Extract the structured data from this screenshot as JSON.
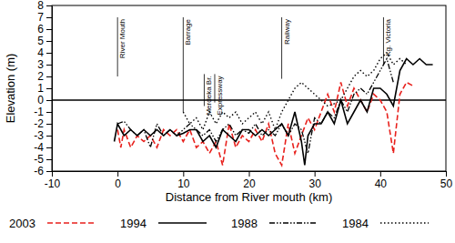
{
  "chart_data": {
    "type": "line",
    "x_label": "Distance from River mouth (km)",
    "y_label": "Elevation (m)",
    "xlim": [
      -10,
      50
    ],
    "xticks": [
      -10,
      0,
      10,
      20,
      30,
      40,
      50
    ],
    "ylim": [
      -6,
      8
    ],
    "yticks": [
      -6,
      -5,
      -4,
      -3,
      -2,
      -1,
      0,
      1,
      2,
      3,
      4,
      5,
      6,
      7,
      8
    ],
    "legend": "bottom",
    "reference_line": 0,
    "annotations": [
      {
        "text": "River Mouth",
        "x": 0,
        "y": [
          2,
          7
        ]
      },
      {
        "text": "Barrage",
        "x": 10,
        "y": [
          -1,
          7
        ]
      },
      {
        "text": "Merdeka Br.",
        "x": 13.2,
        "y": [
          -0.5,
          2.2
        ]
      },
      {
        "text": "Expressway",
        "x": 14.8,
        "y": [
          -0.2,
          2.2
        ]
      },
      {
        "text": "Railway",
        "x": 25,
        "y": [
          1.8,
          7
        ]
      },
      {
        "text": "Kg. Victoria",
        "x": 40.5,
        "y": [
          3,
          7
        ]
      }
    ],
    "series": [
      {
        "name": "2003",
        "color": "#e8211d",
        "line_style": "dashed",
        "x": [
          0,
          0.5,
          1,
          2,
          3,
          4,
          5,
          6,
          7,
          8,
          9,
          10,
          11,
          12,
          13,
          14,
          15,
          16,
          17,
          18,
          19,
          20,
          21,
          22,
          23,
          24,
          25,
          26,
          27,
          28,
          29,
          30,
          31,
          32,
          33,
          34,
          35,
          36,
          37,
          38,
          39,
          40,
          41,
          42,
          43,
          44,
          45
        ],
        "values": [
          -2.5,
          -4,
          -2.5,
          -4,
          -3,
          -3.5,
          -3,
          -4,
          -2.5,
          -3,
          -2.5,
          -3.5,
          -2.5,
          -4,
          -3.5,
          -4.5,
          -3.5,
          -5.5,
          -2,
          -4,
          -3,
          -3.5,
          -2.5,
          -3.5,
          -2,
          -4.5,
          -5.5,
          -2,
          -4.5,
          -3,
          -1.5,
          -2.5,
          -1,
          0.5,
          -1,
          1.5,
          -0.5,
          1,
          0,
          -1,
          0.5,
          0,
          -1,
          -4.5,
          0.5,
          1.5,
          1.2
        ]
      },
      {
        "name": "1994",
        "color": "#000000",
        "line_style": "solid",
        "x": [
          -0.5,
          0,
          1,
          2,
          3,
          4,
          5,
          6,
          7,
          8,
          9,
          10,
          11,
          12,
          13,
          14,
          15,
          16,
          17,
          18,
          19,
          20,
          21,
          22,
          23,
          24,
          25,
          26,
          27,
          28,
          28.5,
          29,
          30,
          31,
          32,
          33,
          34,
          35,
          36,
          37,
          38,
          39,
          40,
          41,
          42,
          43,
          44,
          45,
          46,
          47,
          48
        ],
        "values": [
          -3.5,
          -2,
          -3,
          -2.5,
          -3,
          -2.5,
          -3,
          -2.5,
          -3,
          -2.5,
          -3,
          -2.8,
          -2.5,
          -2.5,
          -3.5,
          -3,
          -4,
          -2.5,
          -3,
          -3.5,
          -2.5,
          -2.5,
          -3,
          -2.5,
          -3,
          -2.5,
          -2,
          -3,
          -1,
          -3.5,
          -5.5,
          -3,
          -2,
          -2,
          -1,
          -2,
          0,
          -2,
          -1,
          0,
          -1,
          1,
          1,
          0.5,
          -0.5,
          2.5,
          3.5,
          3,
          3.5,
          3,
          3
        ]
      },
      {
        "name": "1988",
        "color": "#000000",
        "line_style": "dashdotdot",
        "x": [
          0,
          1,
          2,
          3,
          4,
          5,
          6,
          7,
          8,
          9,
          10,
          11,
          12,
          13,
          14,
          15,
          16,
          17,
          18,
          19,
          20,
          21,
          22,
          23,
          24,
          25,
          26,
          27,
          28,
          29,
          30,
          31,
          32,
          33,
          34,
          35,
          36,
          37,
          38,
          39,
          40,
          41,
          42
        ],
        "values": [
          -2,
          -1.8,
          -2.5,
          -3,
          -2.5,
          -4,
          -2,
          -3,
          -2.5,
          -3,
          -2.5,
          -2,
          -2.5,
          -3,
          -2.5,
          -3.5,
          -2.5,
          -2,
          -3,
          -2.5,
          -2.8,
          -2,
          -3,
          -2.5,
          -3,
          -2,
          -3,
          -2,
          -2.5,
          -4.5,
          -1.5,
          -2,
          -1,
          -1.5,
          0,
          -1,
          0.5,
          1,
          0.5,
          1.5,
          2.5,
          3.5,
          1.5
        ]
      },
      {
        "name": "1984",
        "color": "#000000",
        "line_style": "dotted",
        "x": [
          10,
          11,
          12,
          13,
          14,
          15,
          16,
          17,
          18,
          19,
          20,
          21,
          22,
          23,
          24,
          25,
          26,
          27,
          28,
          29,
          30,
          31,
          32,
          33,
          34,
          35,
          36,
          37,
          38,
          39,
          40,
          41,
          42,
          43,
          44
        ],
        "values": [
          -1,
          -2,
          -1.5,
          -2.5,
          -1,
          -2,
          -1,
          -1.5,
          -1,
          -2,
          -1.5,
          -1,
          -2,
          -1,
          -2.5,
          -1,
          0,
          1,
          1.5,
          1,
          0.5,
          0,
          -0.5,
          -0.3,
          0,
          1,
          2,
          2.5,
          2,
          2.5,
          3.5,
          4,
          3,
          3.5,
          3
        ]
      }
    ]
  }
}
